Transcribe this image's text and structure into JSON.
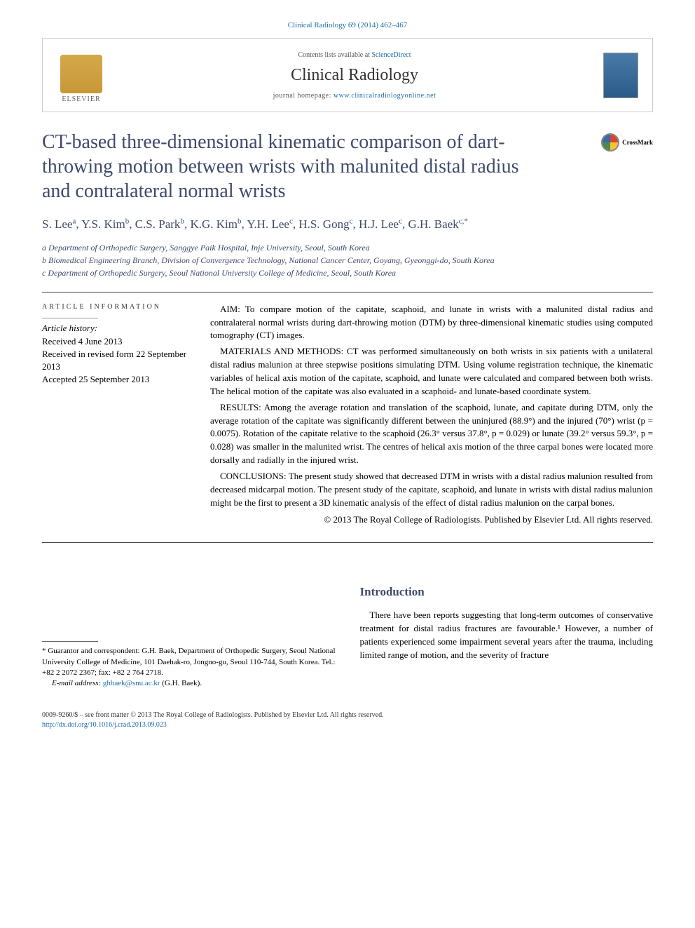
{
  "journal_ref": "Clinical Radiology 69 (2014) 462–467",
  "header": {
    "contents_prefix": "Contents lists available at ",
    "contents_link": "ScienceDirect",
    "journal_name": "Clinical Radiology",
    "homepage_prefix": "journal homepage: ",
    "homepage_url": "www.clinicalradiologyonline.net",
    "elsevier_label": "ELSEVIER"
  },
  "crossmark_label": "CrossMark",
  "title": "CT-based three-dimensional kinematic comparison of dart-throwing motion between wrists with malunited distal radius and contralateral normal wrists",
  "authors_html": "S. Lee<sup>a</sup>, Y.S. Kim<sup>b</sup>, C.S. Park<sup>b</sup>, K.G. Kim<sup>b</sup>, Y.H. Lee<sup>c</sup>, H.S. Gong<sup>c</sup>, H.J. Lee<sup>c</sup>, G.H. Baek<sup>c,*</sup>",
  "affiliations": [
    "a Department of Orthopedic Surgery, Sanggye Paik Hospital, Inje University, Seoul, South Korea",
    "b Biomedical Engineering Branch, Division of Convergence Technology, National Cancer Center, Goyang, Gyeonggi-do, South Korea",
    "c Department of Orthopedic Surgery, Seoul National University College of Medicine, Seoul, South Korea"
  ],
  "article_info": {
    "heading": "ARTICLE INFORMATION",
    "history_label": "Article history:",
    "received": "Received 4 June 2013",
    "revised": "Received in revised form 22 September 2013",
    "accepted": "Accepted 25 September 2013"
  },
  "abstract": {
    "aim": "AIM: To compare motion of the capitate, scaphoid, and lunate in wrists with a malunited distal radius and contralateral normal wrists during dart-throwing motion (DTM) by three-dimensional kinematic studies using computed tomography (CT) images.",
    "methods": "MATERIALS AND METHODS: CT was performed simultaneously on both wrists in six patients with a unilateral distal radius malunion at three stepwise positions simulating DTM. Using volume registration technique, the kinematic variables of helical axis motion of the capitate, scaphoid, and lunate were calculated and compared between both wrists. The helical motion of the capitate was also evaluated in a scaphoid- and lunate-based coordinate system.",
    "results": "RESULTS: Among the average rotation and translation of the scaphoid, lunate, and capitate during DTM, only the average rotation of the capitate was significantly different between the uninjured (88.9°) and the injured (70°) wrist (p = 0.0075). Rotation of the capitate relative to the scaphoid (26.3° versus 37.8°, p = 0.029) or lunate (39.2° versus 59.3°, p = 0.028) was smaller in the malunited wrist. The centres of helical axis motion of the three carpal bones were located more dorsally and radially in the injured wrist.",
    "conclusions": "CONCLUSIONS: The present study showed that decreased DTM in wrists with a distal radius malunion resulted from decreased midcarpal motion. The present study of the capitate, scaphoid, and lunate in wrists with distal radius malunion might be the first to present a 3D kinematic analysis of the effect of distal radius malunion on the carpal bones.",
    "copyright": "© 2013 The Royal College of Radiologists. Published by Elsevier Ltd. All rights reserved."
  },
  "footnote": {
    "corr": "* Guarantor and correspondent: G.H. Baek, Department of Orthopedic Surgery, Seoul National University College of Medicine, 101 Daehak-ro, Jongno-gu, Seoul 110-744, South Korea. Tel.: +82 2 2072 2367; fax: +82 2 764 2718.",
    "email_label": "E-mail address: ",
    "email": "ghbaek@snu.ac.kr",
    "email_suffix": " (G.H. Baek)."
  },
  "intro": {
    "heading": "Introduction",
    "para1": "There have been reports suggesting that long-term outcomes of conservative treatment for distal radius fractures are favourable.¹ However, a number of patients experienced some impairment several years after the trauma, including limited range of motion, and the severity of fracture"
  },
  "footer": {
    "line1": "0009-9260/$ – see front matter © 2013 The Royal College of Radiologists. Published by Elsevier Ltd. All rights reserved.",
    "doi": "http://dx.doi.org/10.1016/j.crad.2013.09.023"
  },
  "colors": {
    "link": "#1a6ba8",
    "heading": "#3f4a6b"
  }
}
